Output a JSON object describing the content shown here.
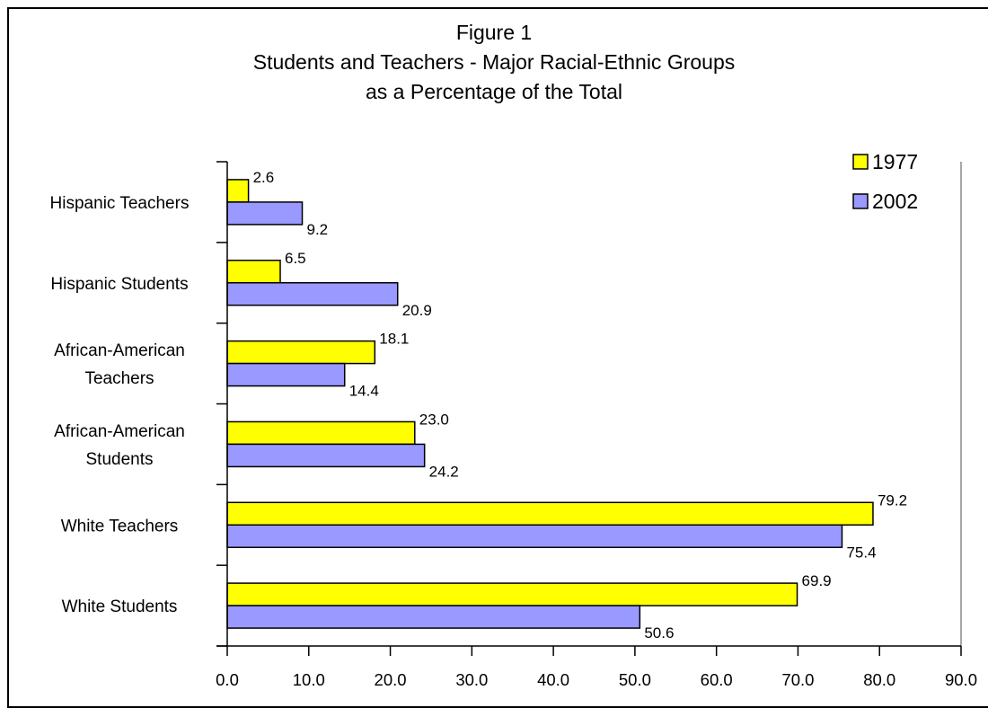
{
  "chart_data": {
    "type": "bar",
    "orientation": "horizontal",
    "title": "Figure 1",
    "subtitle_lines": [
      "Students and Teachers - Major Racial-Ethnic Groups",
      "as a Percentage of the Total"
    ],
    "categories": [
      [
        "Hispanic Teachers"
      ],
      [
        "Hispanic Students"
      ],
      [
        "African-American",
        "Teachers"
      ],
      [
        "African-American",
        "Students"
      ],
      [
        "White Teachers"
      ],
      [
        "White Students"
      ]
    ],
    "series": [
      {
        "name": "1977",
        "color": "#ffff00",
        "values": [
          2.6,
          6.5,
          18.1,
          23.0,
          79.2,
          69.9
        ],
        "labels": [
          "2.6",
          "6.5",
          "18.1",
          "23.0",
          "79.2",
          "69.9"
        ]
      },
      {
        "name": "2002",
        "color": "#9999ff",
        "values": [
          9.2,
          20.9,
          14.4,
          24.2,
          75.4,
          50.6
        ],
        "labels": [
          "9.2",
          "20.9",
          "14.4",
          "24.2",
          "75.4",
          "50.6"
        ]
      }
    ],
    "xlim": [
      0,
      90
    ],
    "xticks": [
      "0.0",
      "10.0",
      "20.0",
      "30.0",
      "40.0",
      "50.0",
      "60.0",
      "70.0",
      "80.0",
      "90.0"
    ],
    "xlabel": "",
    "ylabel": "",
    "grid": false,
    "legend_position": "top-right"
  }
}
